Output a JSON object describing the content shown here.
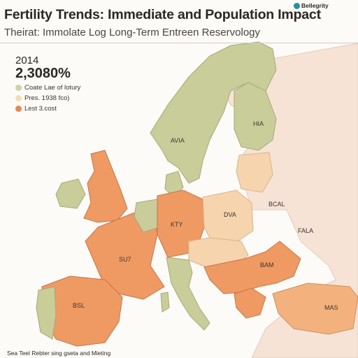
{
  "brand": "Bellegrity",
  "title": "Fertility Trends: Immediate and Population Impact",
  "subtitle": "Theirat: Immolate Log Long-Term Entreen Reservology",
  "legend": {
    "year": "2014",
    "value": "2,3080%",
    "items": [
      {
        "label": "Coate Lae of lotury",
        "color": "#cfd3a6"
      },
      {
        "label": "Pres. 1938 fco)",
        "color": "#f5dcb8"
      },
      {
        "label": "Lest 3.cost",
        "color": "#e58a55"
      }
    ]
  },
  "map_labels": [
    {
      "id": "ha",
      "text": "HIA"
    },
    {
      "id": "avia",
      "text": "AVIA"
    },
    {
      "id": "bal",
      "text": "BCAL"
    },
    {
      "id": "kty",
      "text": "KTY"
    },
    {
      "id": "dva",
      "text": "DVA"
    },
    {
      "id": "fala",
      "text": "FALA"
    },
    {
      "id": "suz",
      "text": "SU7"
    },
    {
      "id": "bam",
      "text": "BAM"
    },
    {
      "id": "bsl",
      "text": "BSL"
    },
    {
      "id": "mas",
      "text": "MAS"
    }
  ],
  "footnote": "Sea Teel Rebter sing gseta and Mieting",
  "colors": {
    "green": "#c9cd9a",
    "orange": "#ef9a63",
    "peach": "#f6d4ae",
    "pale": "#f6e3d6",
    "sea": "#fdfbf7"
  }
}
